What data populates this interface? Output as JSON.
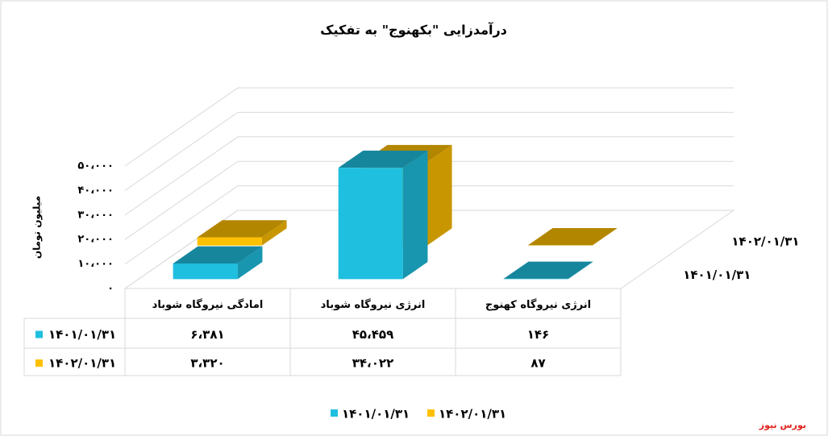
{
  "chart_data": {
    "type": "bar3d",
    "title": "درآمدزایی \"بکهنوج\" به تفکیک",
    "ylabel": "میلیون تومان",
    "categories": [
      "امادگی نیروگاه شوباد",
      "انرژی نیروگاه شوباد",
      "انرژی نیروگاه کهنوج"
    ],
    "series": [
      {
        "name": "۱۴۰۱/۰۱/۳۱",
        "color": "#1fbfe0",
        "values": [
          6381,
          45459,
          146
        ],
        "value_labels": [
          "۶،۳۸۱",
          "۴۵،۴۵۹",
          "۱۴۶"
        ]
      },
      {
        "name": "۱۴۰۲/۰۱/۳۱",
        "color": "#ffc000",
        "values": [
          3320,
          34022,
          87
        ],
        "value_labels": [
          "۳،۳۲۰",
          "۳۴،۰۲۲",
          "۸۷"
        ]
      }
    ],
    "ylim": [
      0,
      50000
    ],
    "yticks": [
      {
        "value": 0,
        "label": "۰"
      },
      {
        "value": 10000,
        "label": "۱۰،۰۰۰"
      },
      {
        "value": 20000,
        "label": "۲۰،۰۰۰"
      },
      {
        "value": 30000,
        "label": "۳۰،۰۰۰"
      },
      {
        "value": 40000,
        "label": "۴۰،۰۰۰"
      },
      {
        "value": 50000,
        "label": "۵۰،۰۰۰"
      }
    ],
    "grid": true,
    "source": "بورس نیوز"
  }
}
